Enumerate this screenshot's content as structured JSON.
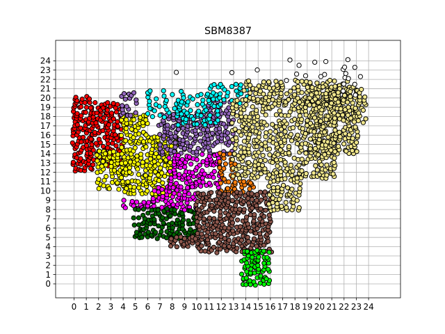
{
  "chart_data": {
    "type": "scatter",
    "title": "SBM8387",
    "xlabel": "",
    "ylabel": "",
    "xlim": [
      -1.5,
      26.6
    ],
    "ylim": [
      -1.5,
      26.2
    ],
    "xticks": [
      "0",
      "1",
      "2",
      "3",
      "4",
      "5",
      "6",
      "7",
      "8",
      "9",
      "10",
      "11",
      "12",
      "13",
      "14",
      "15",
      "16",
      "17",
      "18",
      "19",
      "20",
      "21",
      "22",
      "23",
      "24"
    ],
    "yticks": [
      "0",
      "1",
      "2",
      "3",
      "4",
      "5",
      "6",
      "7",
      "8",
      "9",
      "10",
      "11",
      "12",
      "13",
      "14",
      "15",
      "16",
      "17",
      "18",
      "19",
      "20",
      "21",
      "22",
      "23",
      "24"
    ],
    "grid": true,
    "legend": "none",
    "point_color_outline": "#000000",
    "clusters": [
      {
        "color": "#ff0000",
        "regions": [
          [
            0.0,
            12.2,
            1.5,
            20.4
          ],
          [
            1.5,
            12.8,
            4.0,
            19.6
          ]
        ],
        "density": 1.6
      },
      {
        "color": "#ffff00",
        "regions": [
          [
            2.0,
            10.3,
            4.5,
            14.5
          ],
          [
            4.0,
            9.8,
            6.3,
            18.2
          ],
          [
            6.3,
            9.5,
            8.6,
            16.0
          ]
        ],
        "density": 1.5
      },
      {
        "color": "#9467bd",
        "regions": [
          [
            4.0,
            18.2,
            5.2,
            20.6
          ],
          [
            7.0,
            14.0,
            13.2,
            18.6
          ],
          [
            11.0,
            18.6,
            13.2,
            19.6
          ]
        ],
        "density": 1.3
      },
      {
        "color": "#00ffff",
        "regions": [
          [
            6.0,
            18.0,
            9.0,
            20.8
          ],
          [
            8.5,
            17.0,
            12.0,
            20.6
          ],
          [
            11.0,
            19.5,
            14.2,
            21.6
          ]
        ],
        "density": 0.9
      },
      {
        "color": "#ff00ff",
        "regions": [
          [
            4.0,
            8.2,
            6.5,
            9.0
          ],
          [
            6.5,
            8.0,
            10.0,
            10.5
          ],
          [
            7.8,
            10.5,
            12.0,
            14.0
          ]
        ],
        "density": 1.4
      },
      {
        "color": "#ff7f0e",
        "regions": [
          [
            12.0,
            10.0,
            13.2,
            14.2
          ],
          [
            13.2,
            10.0,
            14.8,
            11.2
          ]
        ],
        "density": 1.5
      },
      {
        "color": "#006400",
        "regions": [
          [
            5.0,
            5.0,
            10.0,
            8.2
          ]
        ],
        "density": 1.6
      },
      {
        "color": "#8c564b",
        "regions": [
          [
            10.0,
            3.5,
            16.0,
            10.0
          ],
          [
            8.0,
            4.0,
            10.0,
            5.0
          ]
        ],
        "density": 1.6
      },
      {
        "color": "#00ff00",
        "regions": [
          [
            13.8,
            0.0,
            16.0,
            3.8
          ]
        ],
        "density": 1.8
      },
      {
        "color": "#f0e68c",
        "regions": [
          [
            13.0,
            11.5,
            21.5,
            20.0
          ],
          [
            16.0,
            8.0,
            18.5,
            11.5
          ],
          [
            14.0,
            19.5,
            22.5,
            22.0
          ],
          [
            19.0,
            14.0,
            23.0,
            21.5
          ],
          [
            21.0,
            17.5,
            23.8,
            21.0
          ]
        ],
        "density": 1.3
      },
      {
        "color": "#ffffff",
        "regions": [
          [
            17.0,
            22.0,
            23.5,
            24.2
          ],
          [
            22.0,
            19.8,
            24.8,
            23.2
          ],
          [
            2.5,
            19.8,
            3.5,
            21.0
          ],
          [
            7.0,
            22.0,
            8.5,
            22.8
          ],
          [
            11.5,
            22.5,
            15.0,
            23.6
          ],
          [
            6.0,
            21.0,
            7.0,
            21.4
          ]
        ],
        "density": 0.15
      }
    ]
  }
}
